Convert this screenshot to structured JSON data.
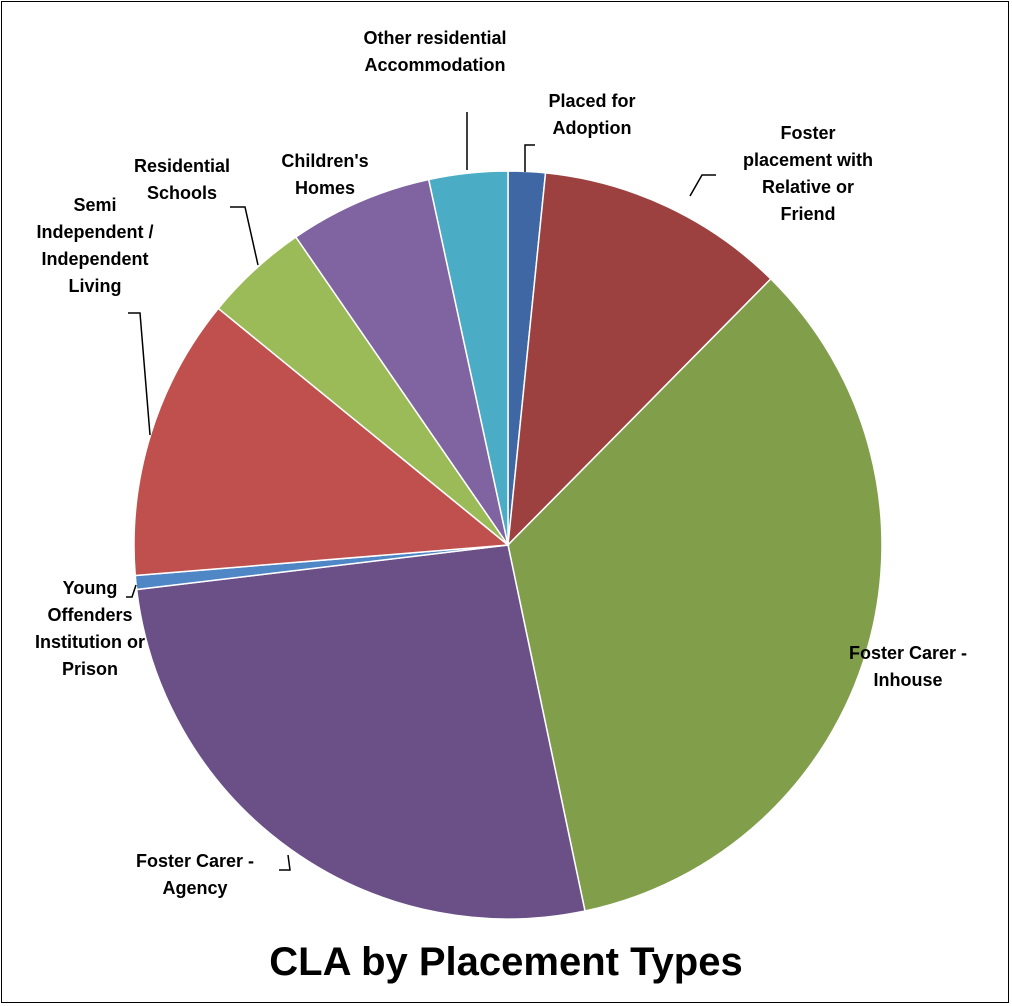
{
  "chart_data": {
    "type": "pie",
    "title": "CLA by Placement Types",
    "categories": [
      "Placed for Adoption",
      "Foster placement with Relative or Friend",
      "Foster Carer - Inhouse",
      "Foster Carer - Agency",
      "Young Offenders Institution or Prison",
      "Semi Independent / Independent Living",
      "Residential Schools",
      "Children's Homes",
      "Other residential Accommodation"
    ],
    "values": [
      1.6,
      10.8,
      34.3,
      26.4,
      0.6,
      12.2,
      4.5,
      6.2,
      3.4
    ],
    "colors": [
      "#3f67a3",
      "#9c413f",
      "#819e4b",
      "#6a5087",
      "#4f86c6",
      "#c0504d",
      "#9bbb59",
      "#8064a2",
      "#4bacc6"
    ]
  }
}
